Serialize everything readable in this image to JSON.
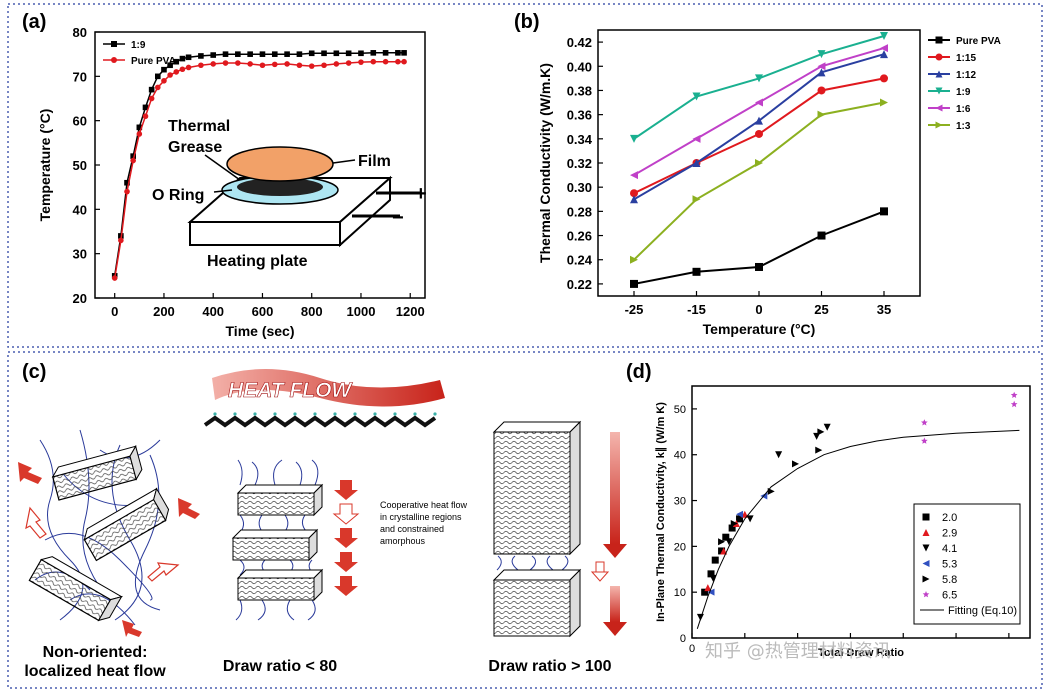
{
  "panel_labels": {
    "a": "(a)",
    "b": "(b)",
    "c": "(c)",
    "d": "(d)"
  },
  "chart_data": [
    {
      "type": "line",
      "panel": "(a)",
      "xlabel": "Time (sec)",
      "ylabel": "Temperature (°C)",
      "xlim": [
        -80,
        1260
      ],
      "ylim": [
        20,
        80
      ],
      "xticks": [
        0,
        200,
        400,
        600,
        800,
        1000,
        1200
      ],
      "yticks": [
        20,
        30,
        40,
        50,
        60,
        70,
        80
      ],
      "legend_position": "top-left",
      "series": [
        {
          "name": "1:9",
          "color": "#000000",
          "marker": "square",
          "x": [
            0,
            25,
            50,
            75,
            100,
            125,
            150,
            175,
            200,
            225,
            250,
            275,
            300,
            350,
            400,
            450,
            500,
            550,
            600,
            650,
            700,
            750,
            800,
            850,
            900,
            950,
            1000,
            1050,
            1100,
            1150,
            1175
          ],
          "y": [
            25,
            34,
            46,
            52,
            58.5,
            63,
            67,
            70,
            71.5,
            72.5,
            73.3,
            74,
            74.3,
            74.6,
            74.8,
            75,
            75,
            75,
            75,
            75,
            75,
            75,
            75.2,
            75.2,
            75.2,
            75.2,
            75.2,
            75.3,
            75.3,
            75.3,
            75.3
          ]
        },
        {
          "name": "Pure PVA",
          "color": "#e0191e",
          "marker": "circle",
          "x": [
            0,
            25,
            50,
            75,
            100,
            125,
            150,
            175,
            200,
            225,
            250,
            275,
            300,
            350,
            400,
            450,
            500,
            550,
            600,
            650,
            700,
            750,
            800,
            850,
            900,
            950,
            1000,
            1050,
            1100,
            1150,
            1175
          ],
          "y": [
            24.5,
            33,
            44,
            51,
            57,
            61,
            65,
            67.5,
            69,
            70.3,
            71,
            71.6,
            72,
            72.5,
            72.8,
            73,
            73,
            72.8,
            72.5,
            72.7,
            72.8,
            72.5,
            72.3,
            72.5,
            72.8,
            73,
            73.2,
            73.3,
            73.3,
            73.3,
            73.3
          ]
        }
      ],
      "inset_labels": {
        "thermal": "Thermal",
        "grease": "Grease",
        "film": "Film",
        "oring": "O Ring",
        "heating": "Heating plate",
        "plus": "+",
        "minus": "−"
      }
    },
    {
      "type": "line",
      "panel": "(b)",
      "xlabel": "Temperature (°C)",
      "ylabel": "Thermal Conductivity (W/m.K)",
      "categories": [
        "-25",
        "-15",
        "0",
        "25",
        "35"
      ],
      "ylim": [
        0.21,
        0.43
      ],
      "yticks": [
        "0.22",
        "0.24",
        "0.26",
        "0.28",
        "0.30",
        "0.32",
        "0.34",
        "0.36",
        "0.38",
        "0.40",
        "0.42"
      ],
      "legend_position": "right",
      "series": [
        {
          "name": "Pure PVA",
          "color": "#000000",
          "marker": "square",
          "values": [
            0.22,
            0.23,
            0.234,
            0.26,
            0.28
          ]
        },
        {
          "name": "1:15",
          "color": "#e0191e",
          "marker": "circle",
          "values": [
            0.295,
            0.32,
            0.344,
            0.38,
            0.39
          ]
        },
        {
          "name": "1:12",
          "color": "#2a3fa0",
          "marker": "triangle-up",
          "values": [
            0.29,
            0.32,
            0.355,
            0.395,
            0.41
          ]
        },
        {
          "name": "1:9",
          "color": "#1ab090",
          "marker": "triangle-down",
          "values": [
            0.34,
            0.375,
            0.39,
            0.41,
            0.425
          ]
        },
        {
          "name": "1:6",
          "color": "#c040c8",
          "marker": "triangle-left",
          "values": [
            0.31,
            0.34,
            0.37,
            0.4,
            0.415
          ]
        },
        {
          "name": "1:3",
          "color": "#8cb020",
          "marker": "triangle-right",
          "values": [
            0.24,
            0.29,
            0.32,
            0.36,
            0.37
          ]
        }
      ]
    },
    {
      "type": "scatter",
      "panel": "(d)",
      "xlabel": "Total Draw Ratio",
      "ylabel": "In-Plane Thermal Conductivity, k∥ (W/m K)",
      "xlim": [
        0,
        320
      ],
      "ylim": [
        0,
        55
      ],
      "yticks": [
        0,
        10,
        20,
        30,
        40,
        50
      ],
      "xticks": [
        0,
        50,
        100,
        150,
        200,
        250,
        300
      ],
      "xtick_labels": [
        "0",
        "",
        "",
        "",
        "",
        "",
        ""
      ],
      "legend_position": "bottom-right",
      "series": [
        {
          "name": "2.0",
          "color": "#000000",
          "marker": "square",
          "x": [
            12,
            18,
            22,
            28,
            32,
            38,
            45
          ],
          "y": [
            10,
            14,
            17,
            19,
            22,
            24,
            26
          ]
        },
        {
          "name": "2.9",
          "color": "#e0191e",
          "marker": "triangle-up",
          "x": [
            15,
            30,
            42,
            50
          ],
          "y": [
            11,
            19,
            25,
            27
          ]
        },
        {
          "name": "4.1",
          "color": "#000000",
          "marker": "triangle-down",
          "x": [
            8,
            20,
            35,
            55,
            82,
            118,
            128
          ],
          "y": [
            4.5,
            13,
            21,
            26,
            40,
            44,
            46
          ]
        },
        {
          "name": "5.3",
          "color": "#3050c0",
          "marker": "triangle-left",
          "x": [
            18,
            45,
            68
          ],
          "y": [
            10,
            27,
            31
          ]
        },
        {
          "name": "5.8",
          "color": "#000000",
          "marker": "triangle-right",
          "x": [
            28,
            40,
            75,
            98,
            120,
            122
          ],
          "y": [
            21,
            25,
            32,
            38,
            41,
            45
          ]
        },
        {
          "name": "6.5",
          "color": "#c040c8",
          "marker": "star",
          "x": [
            220,
            220,
            305,
            305
          ],
          "y": [
            43,
            47,
            51,
            53
          ]
        },
        {
          "name": "Fitting (Eq.10)",
          "color": "#000000",
          "marker": "line",
          "x": [
            5,
            15,
            25,
            35,
            50,
            75,
            100,
            125,
            150,
            175,
            200,
            250,
            310
          ],
          "y": [
            2,
            9,
            15,
            20,
            26,
            33,
            37,
            40,
            41.8,
            43,
            43.8,
            44.7,
            45.3
          ]
        }
      ]
    }
  ],
  "panel_c": {
    "heat_flow": "HEAT FLOW",
    "non_oriented_line1": "Non-oriented:",
    "non_oriented_line2": "localized heat flow",
    "draw_ratio_low": "Draw ratio < 80",
    "draw_ratio_high": "Draw ratio > 100",
    "note_line1": "Cooperative heat flow",
    "note_line2": "in crystalline regions",
    "note_line3": "and constrained",
    "note_line4": "amorphous"
  },
  "watermark": "知乎 @热管理材料资讯"
}
